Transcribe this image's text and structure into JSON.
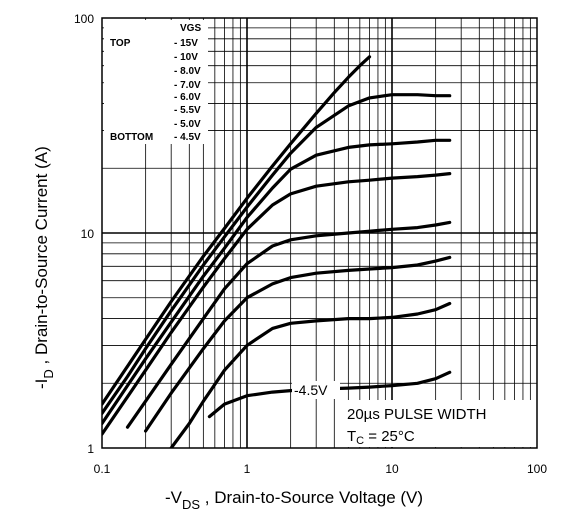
{
  "chart_data": {
    "type": "line",
    "title": "",
    "xlabel": "-V_DS , Drain-to-Source Voltage (V)",
    "xlabel_parts": {
      "prefix": "-V",
      "sub": "DS",
      "rest": " , Drain-to-Source Voltage (V)"
    },
    "ylabel": "-I_D , Drain-to-Source Current (A)",
    "ylabel_parts": {
      "prefix": "-I",
      "sub": "D",
      "rest": " , Drain-to-Source Current (A)"
    },
    "x_scale": "log",
    "y_scale": "log",
    "xlim": [
      0.1,
      100
    ],
    "ylim": [
      1,
      100
    ],
    "x_ticks": [
      0.1,
      1,
      10,
      100
    ],
    "x_tick_labels": [
      "0.1",
      "1",
      "10",
      "100"
    ],
    "y_ticks": [
      1,
      10,
      100
    ],
    "y_tick_labels": [
      "1",
      "10",
      "100"
    ],
    "grid": true,
    "legend": {
      "header": "VGS",
      "top_label": "TOP",
      "bottom_label": "BOTTOM",
      "entries": [
        "- 15V",
        "- 10V",
        "- 8.0V",
        "- 7.0V",
        "- 6.0V",
        "- 5.5V",
        "- 5.0V",
        "- 4.5V"
      ],
      "placement": "top-left"
    },
    "series": [
      {
        "x": [
          0.1,
          0.15,
          0.2,
          0.3,
          0.5,
          0.7,
          1.0,
          1.5,
          2.0,
          3.0,
          4.0,
          5.0,
          6.0,
          7.0
        ],
        "y": [
          1.6,
          2.4,
          3.2,
          4.8,
          7.8,
          10.5,
          14.5,
          20.5,
          26.0,
          36.0,
          45.0,
          53.0,
          60.0,
          66.0
        ]
      },
      {
        "x": [
          0.1,
          0.15,
          0.2,
          0.3,
          0.5,
          0.7,
          1.0,
          1.5,
          2.0,
          3.0,
          5.0,
          7.0,
          10.0,
          15.0,
          20.0,
          25.0
        ],
        "y": [
          1.45,
          2.15,
          2.9,
          4.35,
          7.1,
          9.6,
          13.2,
          18.6,
          23.5,
          31.0,
          39.0,
          42.5,
          44.0,
          44.0,
          43.5,
          43.5
        ]
      },
      {
        "x": [
          0.1,
          0.15,
          0.2,
          0.3,
          0.5,
          0.7,
          1.0,
          1.5,
          2.0,
          3.0,
          5.0,
          7.0,
          10.0,
          15.0,
          20.0,
          25.0
        ],
        "y": [
          1.3,
          1.95,
          2.6,
          3.85,
          6.3,
          8.5,
          11.8,
          16.2,
          19.8,
          23.0,
          25.0,
          25.7,
          26.0,
          26.5,
          27.0,
          27.0
        ]
      },
      {
        "x": [
          0.1,
          0.15,
          0.2,
          0.3,
          0.5,
          0.7,
          1.0,
          1.5,
          2.0,
          3.0,
          5.0,
          7.0,
          10.0,
          15.0,
          20.0,
          25.0
        ],
        "y": [
          1.16,
          1.73,
          2.3,
          3.45,
          5.6,
          7.6,
          10.4,
          13.5,
          15.2,
          16.5,
          17.3,
          17.6,
          18.0,
          18.3,
          18.6,
          18.9
        ]
      },
      {
        "x": [
          0.15,
          0.2,
          0.3,
          0.5,
          0.7,
          1.0,
          1.5,
          2.0,
          3.0,
          5.0,
          7.0,
          10.0,
          15.0,
          20.0,
          25.0
        ],
        "y": [
          1.25,
          1.65,
          2.45,
          4.0,
          5.5,
          7.2,
          8.7,
          9.3,
          9.7,
          10.0,
          10.2,
          10.4,
          10.6,
          10.9,
          11.2
        ]
      },
      {
        "x": [
          0.2,
          0.25,
          0.3,
          0.5,
          0.7,
          1.0,
          1.5,
          2.0,
          3.0,
          5.0,
          7.0,
          10.0,
          15.0,
          20.0,
          25.0
        ],
        "y": [
          1.2,
          1.5,
          1.8,
          2.9,
          3.9,
          5.0,
          5.8,
          6.2,
          6.5,
          6.7,
          6.8,
          6.9,
          7.1,
          7.4,
          7.7
        ]
      },
      {
        "x": [
          0.3,
          0.4,
          0.5,
          0.7,
          1.0,
          1.5,
          2.0,
          3.0,
          5.0,
          7.0,
          10.0,
          15.0,
          20.0,
          25.0
        ],
        "y": [
          1.0,
          1.3,
          1.65,
          2.3,
          3.0,
          3.6,
          3.8,
          3.9,
          4.0,
          4.0,
          4.05,
          4.2,
          4.4,
          4.7
        ]
      },
      {
        "x": [
          0.55,
          0.7,
          1.0,
          1.5,
          2.0,
          3.0,
          5.0,
          7.0,
          10.0,
          15.0,
          20.0,
          25.0
        ],
        "y": [
          1.4,
          1.6,
          1.75,
          1.82,
          1.85,
          1.88,
          1.9,
          1.92,
          1.95,
          2.0,
          2.1,
          2.25
        ]
      }
    ],
    "annotations": {
      "curve_label": "-4.5V",
      "note_line1": "20µs PULSE WIDTH",
      "note_line2_prefix": "T",
      "note_line2_sub": "C",
      "note_line2_rest": " = 25°C"
    }
  }
}
